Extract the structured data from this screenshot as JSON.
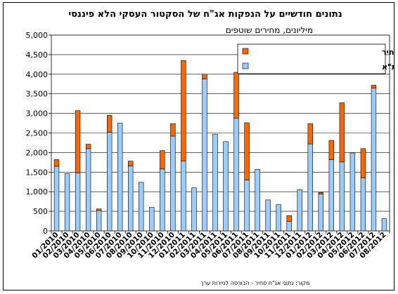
{
  "chart_data": {
    "type": "bar",
    "stacked": true,
    "title": "נתונים חודשיים על הנפקות אג\"ח של הסקטור העסקי הלא פיננסי",
    "subtitle": "מיליונים, מחירים שוטפים",
    "source": "מקור: נתוני אג\"ח סחיר - הבורסה לניירות ערך",
    "ylim": [
      0,
      5000
    ],
    "yticks": [
      "0",
      "500",
      "1,000",
      "1,500",
      "2,000",
      "2,500",
      "3,000",
      "3,500",
      "4,000",
      "4,500",
      "5,000"
    ],
    "grid": true,
    "legend_position": "top-right",
    "categories": [
      "01/2010",
      "02/2010",
      "03/2010",
      "04/2010",
      "05/2010",
      "06/2010",
      "07/2010",
      "08/2010",
      "09/2010",
      "10/2010",
      "11/2010",
      "12/2010",
      "01/2011",
      "02/2011",
      "03/2011",
      "04/2011",
      "05/2011",
      "06/2011",
      "07/2011",
      "08/2011",
      "09/2011",
      "10/2011",
      "11/2011",
      "12/2011",
      "01/2012",
      "02/2012",
      "03/2012",
      "04/2012",
      "05/2012",
      "06/2012",
      "07/2012",
      "08/2012"
    ],
    "xtick_labels": [
      "01/2010",
      "02/2010",
      "03/2010",
      "04/2010",
      "05/2010",
      "06/2010",
      "07/2010",
      "08/2010",
      "09/2010",
      "10/2010",
      "11/2010",
      "12/2010",
      "01/2011",
      "02/2011",
      "03/2011",
      "04/2011",
      "05/2011",
      "06/2011",
      "07/2011",
      "08/2011",
      "09/2011",
      "10/2011",
      "11/2011",
      "12/2011",
      "01/2012",
      "02/2012",
      "03/2012",
      "04/2012",
      "05/2012",
      "06/2012",
      "07/2012",
      "08/2012"
    ],
    "series": [
      {
        "name": "הנפקות אג\"ח סחיר בבורסה בת\"א",
        "color": "#99ccff",
        "values": [
          1650,
          1460,
          1480,
          2100,
          520,
          2520,
          2750,
          1660,
          1240,
          600,
          1580,
          2420,
          1780,
          1100,
          3880,
          2470,
          2280,
          2880,
          1300,
          1570,
          790,
          670,
          240,
          1050,
          2220,
          940,
          1820,
          1760,
          1990,
          1350,
          3650,
          310
        ]
      },
      {
        "name": "הנפקות אג\"ח לא סחיר",
        "color": "#ff6600",
        "values": [
          170,
          0,
          1590,
          110,
          40,
          430,
          0,
          120,
          0,
          0,
          470,
          320,
          2570,
          0,
          120,
          0,
          0,
          1170,
          1460,
          0,
          0,
          0,
          150,
          0,
          520,
          40,
          490,
          1510,
          0,
          750,
          70,
          0
        ]
      }
    ]
  }
}
